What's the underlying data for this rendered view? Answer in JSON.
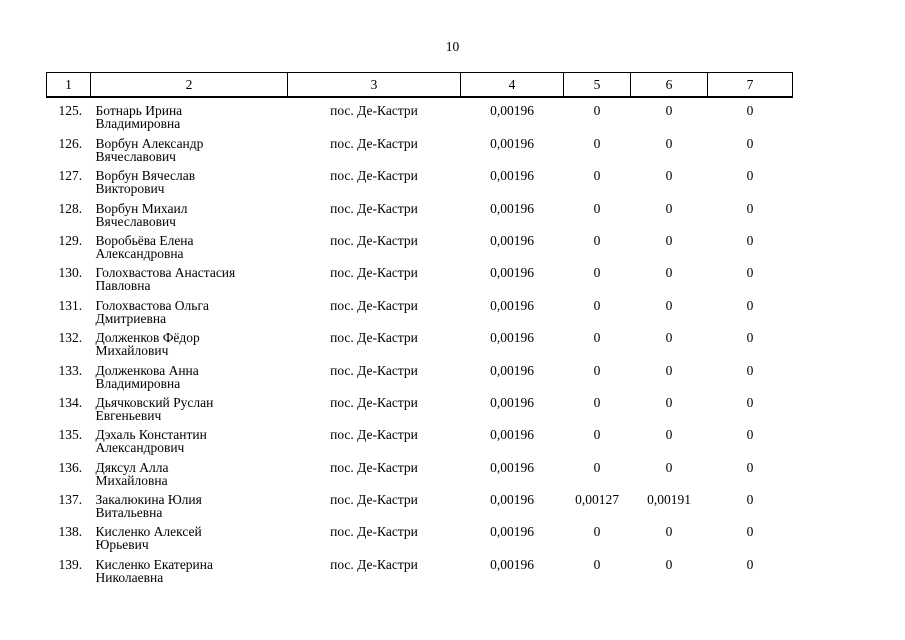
{
  "page": {
    "number": "10"
  },
  "table": {
    "columns": [
      "1",
      "2",
      "3",
      "4",
      "5",
      "6",
      "7"
    ],
    "rows": [
      {
        "num": "125.",
        "name": "Ботнарь Ирина\nВладимировна",
        "locality": "пос. Де-Кастри",
        "c4": "0,00196",
        "c5": "0",
        "c6": "0",
        "c7": "0"
      },
      {
        "num": "126.",
        "name": "Ворбун Александр\nВячеславович",
        "locality": "пос. Де-Кастри",
        "c4": "0,00196",
        "c5": "0",
        "c6": "0",
        "c7": "0"
      },
      {
        "num": "127.",
        "name": "Ворбун Вячеслав\nВикторович",
        "locality": "пос. Де-Кастри",
        "c4": "0,00196",
        "c5": "0",
        "c6": "0",
        "c7": "0"
      },
      {
        "num": "128.",
        "name": "Ворбун Михаил\nВячеславович",
        "locality": "пос. Де-Кастри",
        "c4": "0,00196",
        "c5": "0",
        "c6": "0",
        "c7": "0"
      },
      {
        "num": "129.",
        "name": "Воробьёва Елена\nАлександровна",
        "locality": "пос. Де-Кастри",
        "c4": "0,00196",
        "c5": "0",
        "c6": "0",
        "c7": "0"
      },
      {
        "num": "130.",
        "name": "Голохвастова Анастасия\nПавловна",
        "locality": "пос. Де-Кастри",
        "c4": "0,00196",
        "c5": "0",
        "c6": "0",
        "c7": "0"
      },
      {
        "num": "131.",
        "name": "Голохвастова Ольга\nДмитриевна",
        "locality": "пос. Де-Кастри",
        "c4": "0,00196",
        "c5": "0",
        "c6": "0",
        "c7": "0"
      },
      {
        "num": "132.",
        "name": "Долженков Фёдор\nМихайлович",
        "locality": "пос. Де-Кастри",
        "c4": "0,00196",
        "c5": "0",
        "c6": "0",
        "c7": "0"
      },
      {
        "num": "133.",
        "name": "Долженкова Анна\nВладимировна",
        "locality": "пос. Де-Кастри",
        "c4": "0,00196",
        "c5": "0",
        "c6": "0",
        "c7": "0"
      },
      {
        "num": "134.",
        "name": "Дьячковский Руслан\nЕвгеньевич",
        "locality": "пос. Де-Кастри",
        "c4": "0,00196",
        "c5": "0",
        "c6": "0",
        "c7": "0"
      },
      {
        "num": "135.",
        "name": "Дэхаль Константин\nАлександрович",
        "locality": "пос. Де-Кастри",
        "c4": "0,00196",
        "c5": "0",
        "c6": "0",
        "c7": "0"
      },
      {
        "num": "136.",
        "name": "Дяксул Алла\nМихайловна",
        "locality": "пос. Де-Кастри",
        "c4": "0,00196",
        "c5": "0",
        "c6": "0",
        "c7": "0"
      },
      {
        "num": "137.",
        "name": "Закалюкина Юлия\nВитальевна",
        "locality": "пос. Де-Кастри",
        "c4": "0,00196",
        "c5": "0,00127",
        "c6": "0,00191",
        "c7": "0"
      },
      {
        "num": "138.",
        "name": "Кисленко Алексей\nЮрьевич",
        "locality": "пос. Де-Кастри",
        "c4": "0,00196",
        "c5": "0",
        "c6": "0",
        "c7": "0"
      },
      {
        "num": "139.",
        "name": "Кисленко Екатерина\nНиколаевна",
        "locality": "пос. Де-Кастри",
        "c4": "0,00196",
        "c5": "0",
        "c6": "0",
        "c7": "0"
      }
    ]
  }
}
